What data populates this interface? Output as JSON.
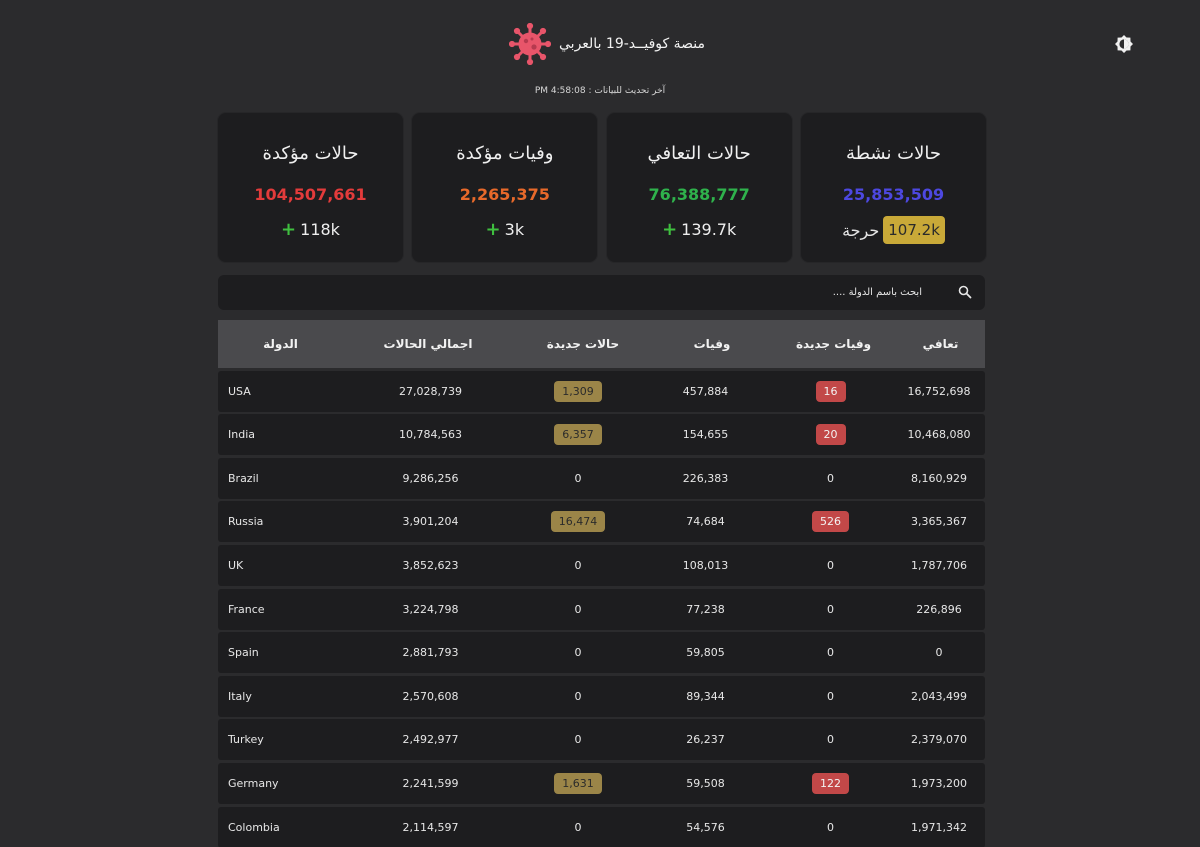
{
  "header": {
    "title": "منصة كوفيــد-19 بالعربي",
    "update_label": "آخر تحديث للبيانات :",
    "update_time": "4:58:08 PM"
  },
  "cards": [
    {
      "title": "حالات مؤكدة",
      "value": "104,507,661",
      "change": "118k",
      "color": "#e33b3b"
    },
    {
      "title": "وفيات مؤكدة",
      "value": "2,265,375",
      "change": "3k",
      "color": "#e8692a"
    },
    {
      "title": "حالات التعافي",
      "value": "76,388,777",
      "change": "139.7k",
      "color": "#2fb24c"
    },
    {
      "title": "حالات نشطة",
      "value": "25,853,509",
      "badge": "107.2k",
      "badge_label": "حرجة",
      "color": "#4d48e0"
    }
  ],
  "search": {
    "placeholder": "ابحث باسم الدولة ...."
  },
  "table": {
    "headers": {
      "country": "الدولة",
      "total": "اجمالي الحالات",
      "new_cases": "حالات جديدة",
      "deaths": "وفيات",
      "new_deaths": "وفيات جديدة",
      "recovered": "تعافي"
    },
    "rows": [
      {
        "country": "USA",
        "total": "27,028,739",
        "new_cases": "1,309",
        "deaths": "457,884",
        "new_deaths": "16",
        "recovered": "16,752,698"
      },
      {
        "country": "India",
        "total": "10,784,563",
        "new_cases": "6,357",
        "deaths": "154,655",
        "new_deaths": "20",
        "recovered": "10,468,080"
      },
      {
        "country": "Brazil",
        "total": "9,286,256",
        "new_cases": "0",
        "deaths": "226,383",
        "new_deaths": "0",
        "recovered": "8,160,929"
      },
      {
        "country": "Russia",
        "total": "3,901,204",
        "new_cases": "16,474",
        "deaths": "74,684",
        "new_deaths": "526",
        "recovered": "3,365,367"
      },
      {
        "country": "UK",
        "total": "3,852,623",
        "new_cases": "0",
        "deaths": "108,013",
        "new_deaths": "0",
        "recovered": "1,787,706"
      },
      {
        "country": "France",
        "total": "3,224,798",
        "new_cases": "0",
        "deaths": "77,238",
        "new_deaths": "0",
        "recovered": "226,896"
      },
      {
        "country": "Spain",
        "total": "2,881,793",
        "new_cases": "0",
        "deaths": "59,805",
        "new_deaths": "0",
        "recovered": "0"
      },
      {
        "country": "Italy",
        "total": "2,570,608",
        "new_cases": "0",
        "deaths": "89,344",
        "new_deaths": "0",
        "recovered": "2,043,499"
      },
      {
        "country": "Turkey",
        "total": "2,492,977",
        "new_cases": "0",
        "deaths": "26,237",
        "new_deaths": "0",
        "recovered": "2,379,070"
      },
      {
        "country": "Germany",
        "total": "2,241,599",
        "new_cases": "1,631",
        "deaths": "59,508",
        "new_deaths": "122",
        "recovered": "1,973,200"
      },
      {
        "country": "Colombia",
        "total": "2,114,597",
        "new_cases": "0",
        "deaths": "54,576",
        "new_deaths": "0",
        "recovered": "1,971,342"
      }
    ]
  },
  "icons": {
    "logo": "virus-icon",
    "theme": "brightness-icon",
    "search": "search-icon"
  }
}
